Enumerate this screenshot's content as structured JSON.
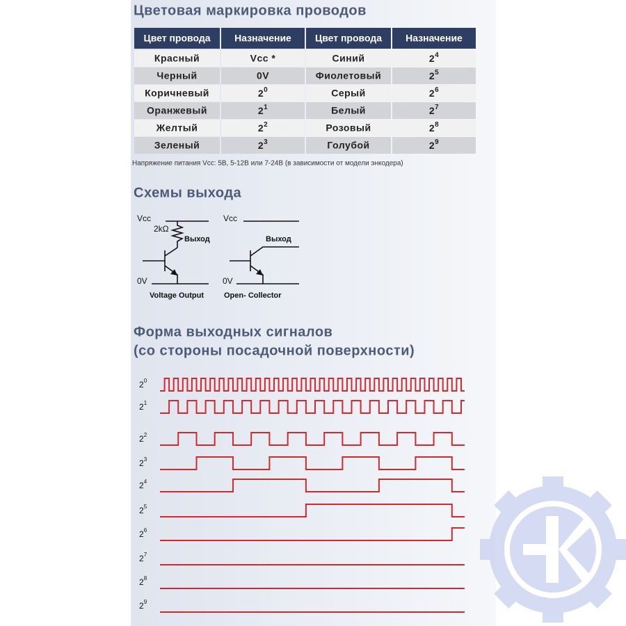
{
  "headings": {
    "wire_colors": "Цветовая маркировка проводов",
    "output_circuits": "Схемы выхода",
    "signal_forms": [
      "Форма выходных сигналов",
      "(со стороны посадочной поверхности)"
    ]
  },
  "table": {
    "header": [
      "Цвет провода",
      "Назначение",
      "Цвет провода",
      "Назначение"
    ],
    "rows": [
      [
        "Красный",
        "Vcc *",
        "Синий",
        {
          "base": "2",
          "sup": "4"
        }
      ],
      [
        "Черный",
        "0V",
        "Фиолетовый",
        {
          "base": "2",
          "sup": "5"
        }
      ],
      [
        "Коричневый",
        {
          "base": "2",
          "sup": "0"
        },
        "Серый",
        {
          "base": "2",
          "sup": "6"
        }
      ],
      [
        "Оранжевый",
        {
          "base": "2",
          "sup": "1"
        },
        "Белый",
        {
          "base": "2",
          "sup": "7"
        }
      ],
      [
        "Желтый",
        {
          "base": "2",
          "sup": "2"
        },
        "Розовый",
        {
          "base": "2",
          "sup": "8"
        }
      ],
      [
        "Зеленый",
        {
          "base": "2",
          "sup": "3"
        },
        "Голубой",
        {
          "base": "2",
          "sup": "9"
        }
      ]
    ]
  },
  "note": "Напряжение питания Vcc: 5В, 5-12В или 7-24В (в зависимости от модели энкодера)",
  "circuits": [
    {
      "vcc": "Vcc",
      "resistor": "2kΩ",
      "output": "Выход",
      "ground": "0V",
      "caption": "Voltage Output"
    },
    {
      "vcc": "Vcc",
      "output": "Выход",
      "ground": "0V",
      "caption": "Open- Collector"
    }
  ],
  "signals": [
    {
      "base": "2",
      "sup": "0"
    },
    {
      "base": "2",
      "sup": "1"
    },
    {
      "base": "2",
      "sup": "2"
    },
    {
      "base": "2",
      "sup": "3"
    },
    {
      "base": "2",
      "sup": "4"
    },
    {
      "base": "2",
      "sup": "5"
    },
    {
      "base": "2",
      "sup": "6"
    },
    {
      "base": "2",
      "sup": "7"
    },
    {
      "base": "2",
      "sup": "8"
    },
    {
      "base": "2",
      "sup": "9"
    }
  ]
}
